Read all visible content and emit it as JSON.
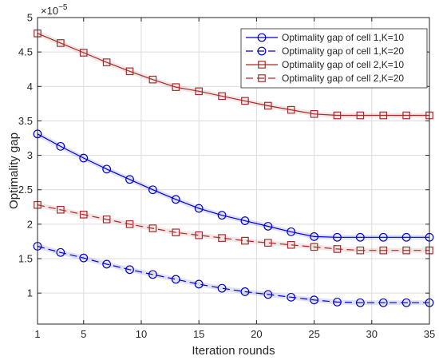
{
  "chart_data": {
    "type": "line",
    "title": "",
    "xlabel": "Iteration rounds",
    "ylabel": "Optimality gap",
    "exponent_base": "×10",
    "exponent_power": "−5",
    "xlim": [
      1,
      35
    ],
    "ylim": [
      0.55,
      5.0
    ],
    "xticks": [
      1,
      5,
      10,
      15,
      20,
      25,
      30,
      35
    ],
    "xtick_labels": [
      "1",
      "5",
      "10",
      "15",
      "20",
      "25",
      "30",
      "35"
    ],
    "yticks": [
      1,
      1.5,
      2,
      2.5,
      3,
      3.5,
      4,
      4.5,
      5
    ],
    "ytick_labels": [
      "1",
      "1.5",
      "2",
      "2.5",
      "3",
      "3.5",
      "4",
      "4.5",
      "5"
    ],
    "grid": true,
    "legend_position": "top-right",
    "x": [
      1,
      3,
      5,
      7,
      9,
      11,
      13,
      15,
      17,
      19,
      21,
      23,
      25,
      27,
      29,
      31,
      33,
      35
    ],
    "series": [
      {
        "name": "Optimality gap of cell 1,K=10",
        "color": "#0000cc",
        "line_style": "solid",
        "marker": "circle",
        "values": [
          3.31,
          3.13,
          2.96,
          2.8,
          2.65,
          2.5,
          2.36,
          2.23,
          2.13,
          2.05,
          1.97,
          1.89,
          1.82,
          1.81,
          1.81,
          1.81,
          1.81,
          1.81
        ]
      },
      {
        "name": "Optimality gap of cell 1,K=20",
        "color": "#0000cc",
        "line_style": "dashed",
        "marker": "circle",
        "values": [
          1.68,
          1.59,
          1.51,
          1.42,
          1.34,
          1.27,
          1.2,
          1.13,
          1.07,
          1.02,
          0.98,
          0.94,
          0.9,
          0.87,
          0.86,
          0.86,
          0.86,
          0.86
        ]
      },
      {
        "name": "Optimality gap of cell 2,K=10",
        "color": "#a52a2a",
        "line_style": "solid",
        "marker": "square",
        "values": [
          4.77,
          4.63,
          4.49,
          4.35,
          4.22,
          4.1,
          3.99,
          3.93,
          3.86,
          3.79,
          3.72,
          3.66,
          3.6,
          3.58,
          3.58,
          3.58,
          3.58,
          3.58
        ]
      },
      {
        "name": "Optimality gap of cell 2,K=20",
        "color": "#a52a2a",
        "line_style": "dashed",
        "marker": "square",
        "values": [
          2.28,
          2.21,
          2.14,
          2.07,
          2.0,
          1.94,
          1.88,
          1.84,
          1.8,
          1.76,
          1.73,
          1.7,
          1.67,
          1.64,
          1.62,
          1.62,
          1.62,
          1.62
        ]
      }
    ]
  }
}
